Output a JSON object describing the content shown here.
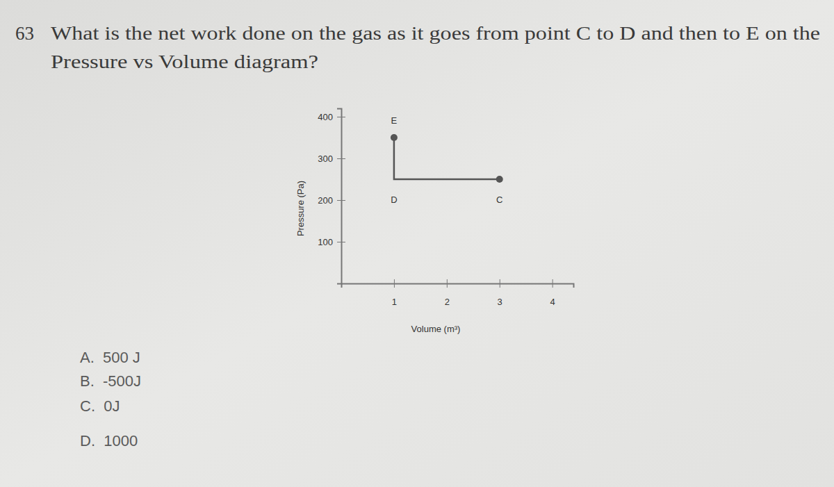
{
  "question": {
    "number": "63",
    "lines": [
      "What is the net work done on the gas as it goes from point C to D and then to E on the",
      "Pressure vs Volume diagram?"
    ]
  },
  "options": [
    "A.  500 J",
    "B.  -500J",
    "C.  0J",
    "D.  1000"
  ],
  "chart_data": {
    "type": "line",
    "x_label": "Volume (m³)",
    "y_label": "Pressure (Pa)",
    "x": [
      3,
      1,
      1
    ],
    "series": [
      {
        "values": [
          250,
          250,
          350
        ],
        "point_labels": [
          "C",
          "D",
          "E"
        ],
        "color": "#555555",
        "marker": "circle"
      }
    ],
    "xlim": [
      0,
      4.4
    ],
    "ylim": [
      0,
      420
    ],
    "xticks": [
      1,
      2,
      3,
      4
    ],
    "yticks": [
      100,
      200,
      300,
      400
    ],
    "grid": false
  }
}
